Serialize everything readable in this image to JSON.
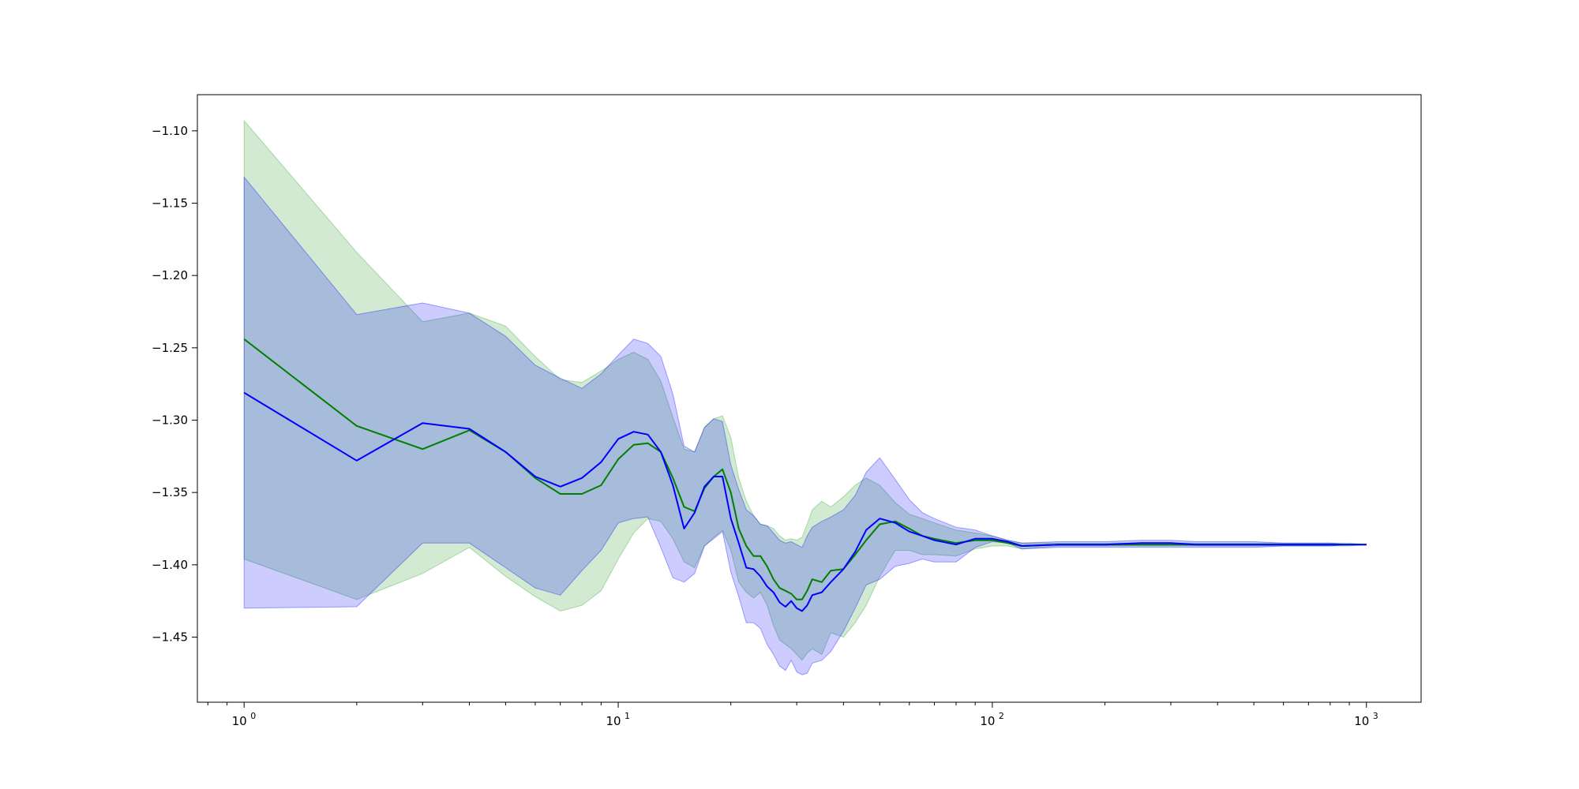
{
  "chart_data": {
    "type": "line",
    "title": "",
    "xlabel": "",
    "ylabel": "",
    "xscale": "log",
    "xlim": [
      0.75,
      1400
    ],
    "ylim": [
      -1.495,
      -1.075
    ],
    "grid": false,
    "legend": "none",
    "x_tick_labels": [
      {
        "value": 1,
        "base": "10",
        "exp": "0"
      },
      {
        "value": 10,
        "base": "10",
        "exp": "1"
      },
      {
        "value": 100,
        "base": "10",
        "exp": "2"
      },
      {
        "value": 1000,
        "base": "10",
        "exp": "3"
      }
    ],
    "y_tick_labels": [
      {
        "value": -1.1,
        "label": "−1.10"
      },
      {
        "value": -1.15,
        "label": "−1.15"
      },
      {
        "value": -1.2,
        "label": "−1.20"
      },
      {
        "value": -1.25,
        "label": "−1.25"
      },
      {
        "value": -1.3,
        "label": "−1.30"
      },
      {
        "value": -1.35,
        "label": "−1.35"
      },
      {
        "value": -1.4,
        "label": "−1.40"
      },
      {
        "value": -1.45,
        "label": "−1.45"
      }
    ],
    "series": [
      {
        "color": "#008000",
        "band_color": "#2ca02c",
        "band_opacity": 0.22,
        "x": [
          1,
          2,
          3,
          4,
          5,
          6,
          7,
          8,
          9,
          10,
          11,
          12,
          13,
          14,
          15,
          16,
          17,
          18,
          19,
          20,
          21,
          22,
          23,
          24,
          25,
          26,
          27,
          28,
          29,
          30,
          31,
          32,
          33,
          35,
          37,
          40,
          43,
          46,
          50,
          55,
          60,
          65,
          70,
          80,
          90,
          100,
          110,
          120,
          150,
          200,
          250,
          300,
          350,
          400,
          500,
          600,
          700,
          800,
          900,
          1000
        ],
        "mean": [
          -1.244,
          -1.304,
          -1.32,
          -1.307,
          -1.322,
          -1.34,
          -1.351,
          -1.351,
          -1.345,
          -1.327,
          -1.317,
          -1.316,
          -1.322,
          -1.34,
          -1.36,
          -1.363,
          -1.347,
          -1.339,
          -1.334,
          -1.35,
          -1.375,
          -1.387,
          -1.394,
          -1.394,
          -1.401,
          -1.41,
          -1.416,
          -1.418,
          -1.42,
          -1.424,
          -1.424,
          -1.418,
          -1.41,
          -1.412,
          -1.404,
          -1.403,
          -1.393,
          -1.383,
          -1.372,
          -1.37,
          -1.375,
          -1.38,
          -1.382,
          -1.385,
          -1.383,
          -1.383,
          -1.385,
          -1.387,
          -1.386,
          -1.386,
          -1.386,
          -1.386,
          -1.386,
          -1.386,
          -1.386,
          -1.386,
          -1.386,
          -1.386,
          -1.386,
          -1.386
        ],
        "upper": [
          -1.093,
          -1.184,
          -1.232,
          -1.226,
          -1.235,
          -1.256,
          -1.272,
          -1.274,
          -1.266,
          -1.258,
          -1.253,
          -1.258,
          -1.273,
          -1.298,
          -1.32,
          -1.322,
          -1.305,
          -1.299,
          -1.297,
          -1.312,
          -1.34,
          -1.356,
          -1.366,
          -1.372,
          -1.373,
          -1.375,
          -1.38,
          -1.383,
          -1.382,
          -1.383,
          -1.381,
          -1.372,
          -1.362,
          -1.356,
          -1.36,
          -1.353,
          -1.345,
          -1.34,
          -1.345,
          -1.357,
          -1.365,
          -1.368,
          -1.371,
          -1.376,
          -1.378,
          -1.38,
          -1.383,
          -1.385,
          -1.385,
          -1.385,
          -1.385,
          -1.385,
          -1.385,
          -1.385,
          -1.385,
          -1.385,
          -1.385,
          -1.385,
          -1.385,
          -1.386
        ],
        "lower": [
          -1.396,
          -1.424,
          -1.406,
          -1.388,
          -1.408,
          -1.422,
          -1.432,
          -1.428,
          -1.418,
          -1.396,
          -1.378,
          -1.368,
          -1.37,
          -1.382,
          -1.398,
          -1.402,
          -1.387,
          -1.381,
          -1.376,
          -1.39,
          -1.412,
          -1.419,
          -1.423,
          -1.419,
          -1.428,
          -1.442,
          -1.452,
          -1.455,
          -1.458,
          -1.462,
          -1.466,
          -1.461,
          -1.458,
          -1.462,
          -1.447,
          -1.45,
          -1.44,
          -1.428,
          -1.408,
          -1.39,
          -1.39,
          -1.393,
          -1.393,
          -1.394,
          -1.389,
          -1.387,
          -1.387,
          -1.389,
          -1.387,
          -1.387,
          -1.387,
          -1.387,
          -1.387,
          -1.387,
          -1.387,
          -1.387,
          -1.387,
          -1.387,
          -1.387,
          -1.386
        ]
      },
      {
        "color": "#0000ff",
        "band_color": "#0000ff",
        "band_opacity": 0.2,
        "x": [
          1,
          2,
          3,
          4,
          5,
          6,
          7,
          8,
          9,
          10,
          11,
          12,
          13,
          14,
          15,
          16,
          17,
          18,
          19,
          20,
          21,
          22,
          23,
          24,
          25,
          26,
          27,
          28,
          29,
          30,
          31,
          32,
          33,
          35,
          37,
          40,
          43,
          46,
          50,
          55,
          60,
          65,
          70,
          80,
          90,
          100,
          110,
          120,
          150,
          200,
          250,
          300,
          350,
          400,
          500,
          600,
          700,
          800,
          900,
          1000
        ],
        "mean": [
          -1.281,
          -1.328,
          -1.302,
          -1.306,
          -1.322,
          -1.339,
          -1.346,
          -1.34,
          -1.329,
          -1.313,
          -1.308,
          -1.31,
          -1.322,
          -1.345,
          -1.375,
          -1.364,
          -1.346,
          -1.339,
          -1.339,
          -1.368,
          -1.385,
          -1.402,
          -1.403,
          -1.408,
          -1.415,
          -1.419,
          -1.426,
          -1.429,
          -1.425,
          -1.43,
          -1.432,
          -1.428,
          -1.421,
          -1.419,
          -1.412,
          -1.403,
          -1.391,
          -1.376,
          -1.368,
          -1.371,
          -1.377,
          -1.38,
          -1.383,
          -1.386,
          -1.382,
          -1.382,
          -1.384,
          -1.387,
          -1.386,
          -1.386,
          -1.385,
          -1.385,
          -1.386,
          -1.386,
          -1.386,
          -1.386,
          -1.386,
          -1.386,
          -1.386,
          -1.386
        ],
        "upper": [
          -1.132,
          -1.227,
          -1.219,
          -1.226,
          -1.242,
          -1.262,
          -1.271,
          -1.278,
          -1.268,
          -1.255,
          -1.244,
          -1.247,
          -1.256,
          -1.282,
          -1.318,
          -1.322,
          -1.305,
          -1.299,
          -1.301,
          -1.331,
          -1.348,
          -1.362,
          -1.366,
          -1.372,
          -1.373,
          -1.378,
          -1.383,
          -1.385,
          -1.384,
          -1.386,
          -1.388,
          -1.38,
          -1.374,
          -1.37,
          -1.367,
          -1.362,
          -1.352,
          -1.336,
          -1.326,
          -1.341,
          -1.355,
          -1.364,
          -1.368,
          -1.374,
          -1.376,
          -1.38,
          -1.383,
          -1.385,
          -1.384,
          -1.384,
          -1.383,
          -1.383,
          -1.384,
          -1.384,
          -1.384,
          -1.385,
          -1.385,
          -1.385,
          -1.386,
          -1.386
        ],
        "lower": [
          -1.43,
          -1.429,
          -1.385,
          -1.385,
          -1.402,
          -1.416,
          -1.421,
          -1.404,
          -1.39,
          -1.371,
          -1.368,
          -1.367,
          -1.388,
          -1.409,
          -1.412,
          -1.406,
          -1.387,
          -1.382,
          -1.377,
          -1.405,
          -1.422,
          -1.44,
          -1.44,
          -1.444,
          -1.455,
          -1.462,
          -1.47,
          -1.473,
          -1.466,
          -1.474,
          -1.476,
          -1.475,
          -1.468,
          -1.466,
          -1.46,
          -1.446,
          -1.43,
          -1.414,
          -1.41,
          -1.401,
          -1.399,
          -1.396,
          -1.398,
          -1.398,
          -1.388,
          -1.384,
          -1.385,
          -1.389,
          -1.388,
          -1.388,
          -1.388,
          -1.388,
          -1.388,
          -1.388,
          -1.388,
          -1.387,
          -1.387,
          -1.387,
          -1.386,
          -1.386
        ]
      }
    ]
  }
}
